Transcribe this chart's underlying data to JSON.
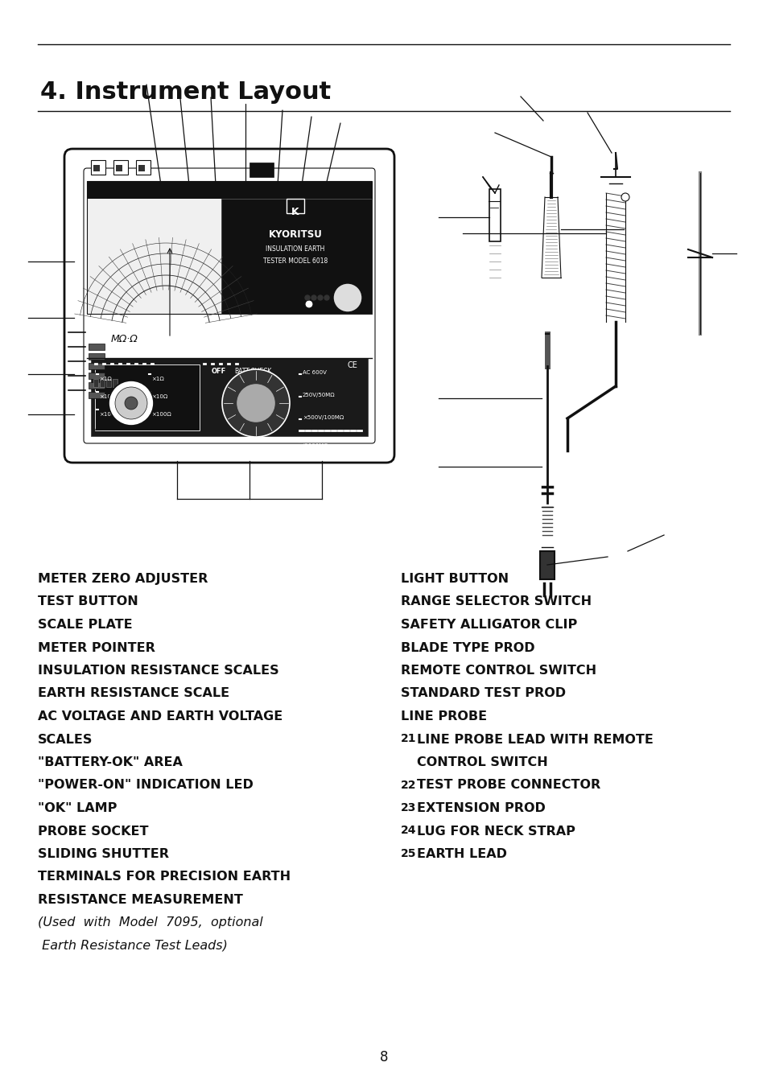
{
  "title": "4. Instrument Layout",
  "background_color": "#ffffff",
  "text_color": "#111111",
  "page_number": "8",
  "left_column": [
    "METER ZERO ADJUSTER",
    "TEST BUTTON",
    "SCALE PLATE",
    "METER POINTER",
    "INSULATION RESISTANCE SCALES",
    "EARTH RESISTANCE SCALE",
    "AC VOLTAGE AND EARTH VOLTAGE",
    "SCALES",
    "\"BATTERY-OK\" AREA",
    "\"POWER-ON\" INDICATION LED",
    "\"OK\" LAMP",
    "PROBE SOCKET",
    "SLIDING SHUTTER",
    "TERMINALS FOR PRECISION EARTH",
    "RESISTANCE MEASUREMENT",
    "(Used  with  Model  7095,  optional",
    " Earth Resistance Test Leads)"
  ],
  "right_column_plain": [
    "LIGHT BUTTON",
    "RANGE SELECTOR SWITCH",
    "SAFETY ALLIGATOR CLIP",
    "BLADE TYPE PROD",
    "REMOTE CONTROL SWITCH",
    "STANDARD TEST PROD",
    "LINE PROBE"
  ],
  "right_column_numbered": [
    [
      "21",
      "LINE PROBE LEAD WITH REMOTE"
    ],
    [
      "",
      "CONTROL SWITCH"
    ],
    [
      "22",
      "TEST PROBE CONNECTOR"
    ],
    [
      "23",
      "EXTENSION PROD"
    ],
    [
      "24",
      "LUG FOR NECK STRAP"
    ],
    [
      "25",
      "EARTH LEAD"
    ]
  ],
  "title_fontsize": 22,
  "body_fontsize": 11.5,
  "hr_color": "#333333",
  "lc": "#111111"
}
